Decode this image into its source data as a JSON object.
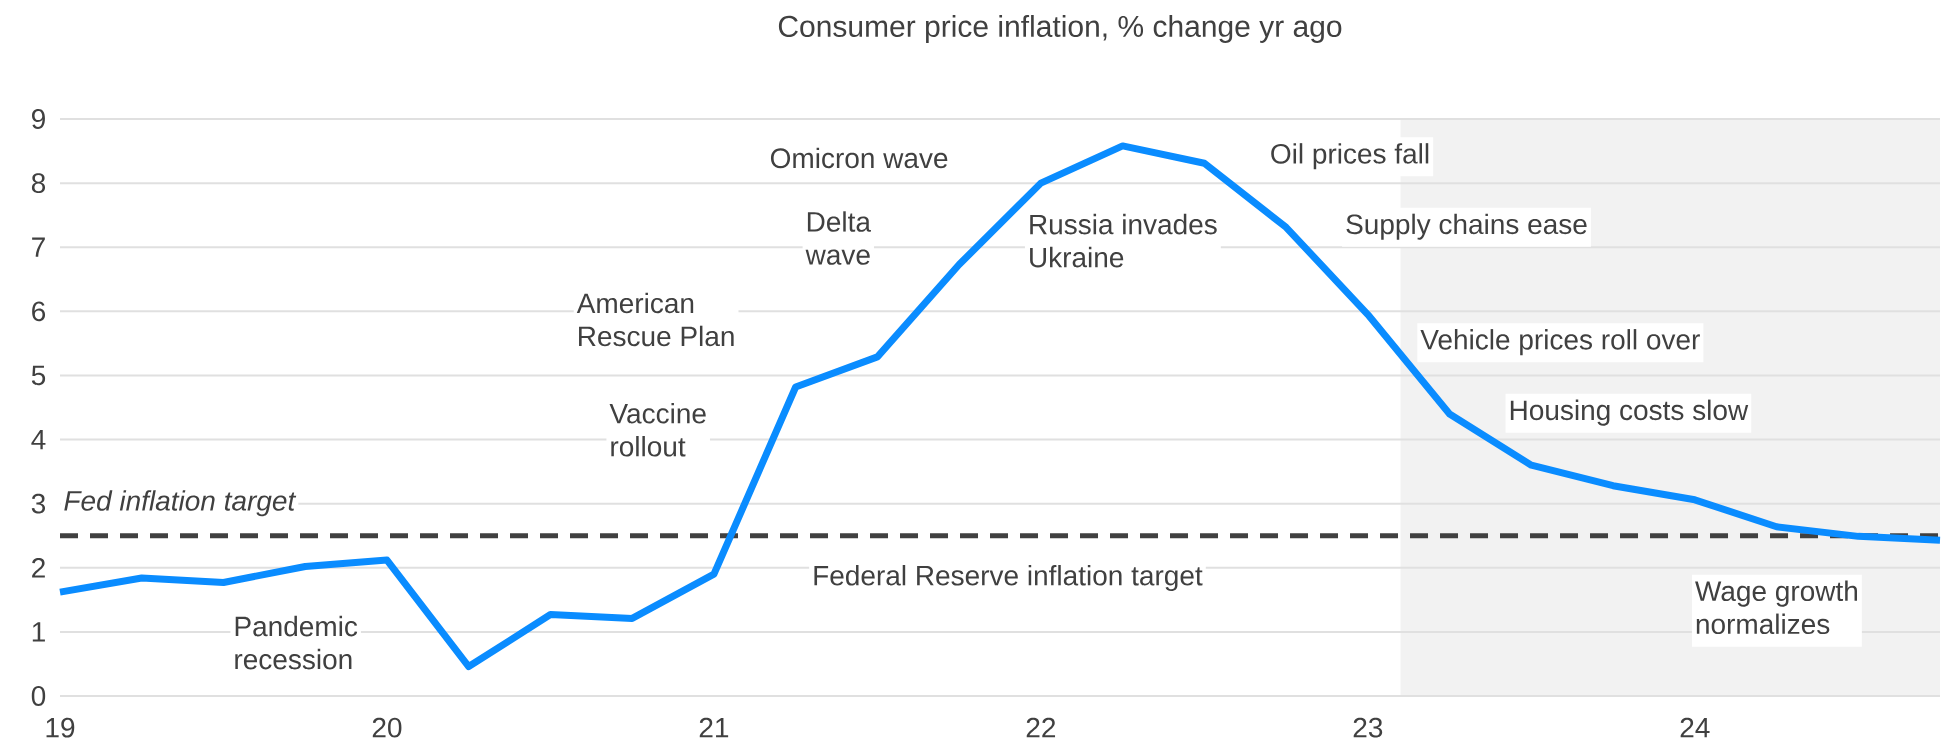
{
  "chart_data": {
    "type": "line",
    "title": "Consumer price inflation, % change yr ago",
    "x": [
      19,
      19.25,
      19.5,
      19.75,
      20,
      20.25,
      20.5,
      20.75,
      21,
      21.25,
      21.5,
      21.75,
      22,
      22.25,
      22.5,
      22.75,
      23,
      23.25,
      23.5,
      23.75,
      24,
      24.25,
      24.5,
      24.75
    ],
    "series": [
      {
        "color": "#0a8cff",
        "values": [
          1.62,
          1.84,
          1.77,
          2.02,
          2.12,
          0.46,
          1.27,
          1.21,
          1.9,
          4.82,
          5.29,
          6.73,
          8.0,
          8.58,
          8.31,
          7.31,
          5.95,
          4.4,
          3.6,
          3.28,
          3.06,
          2.64,
          2.49,
          2.43
        ]
      }
    ],
    "xlim": [
      19,
      24.75
    ],
    "xticks": [
      19,
      20,
      21,
      22,
      23,
      24
    ],
    "ylim": [
      0,
      9
    ],
    "yticks": [
      0,
      1,
      2,
      3,
      4,
      5,
      6,
      7,
      8,
      9
    ],
    "grid": "y",
    "line_style": "solid",
    "marker": "none",
    "ref_lines": [
      {
        "axis": "y",
        "value": 2.5,
        "label": "Fed inflation target",
        "color": "#404040",
        "line_style": "dashed"
      }
    ],
    "bands": [
      {
        "axis": "x",
        "from": 23.1,
        "to": 24.75,
        "color": "#f2f2f2"
      }
    ],
    "annotations": [
      "Pandemic\nrecession",
      "Vaccine\nrollout",
      "American\nRescue Plan",
      "Delta\nwave",
      "Omicron wave",
      "Federal Reserve inflation target",
      "Russia invades\nUkraine",
      "Oil prices fall",
      "Supply chains ease",
      "Vehicle prices roll over",
      "Housing costs slow",
      "Wage growth\nnormalizes"
    ]
  }
}
